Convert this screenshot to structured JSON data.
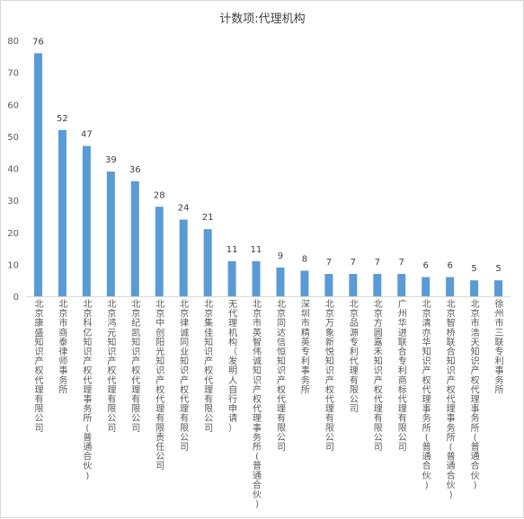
{
  "chart_data": {
    "type": "bar",
    "title": "计数项:代理机构",
    "xlabel": "",
    "ylabel": "",
    "ylim": [
      0,
      80
    ],
    "yticks": [
      0,
      10,
      20,
      30,
      40,
      50,
      60,
      70,
      80
    ],
    "grid": false,
    "legend": "none",
    "bar_color": "#5b9bd5",
    "categories": [
      "北京康盛知识产权代理有限公司",
      "北京市商泰律师事务所",
      "北京科亿知识产权代理事务所(普通合伙)",
      "北京鸿元知识产权代理有限公司",
      "北京纪凯知识产权代理有限公司",
      "北京中创阳光知识产权代理有限责任公司",
      "北京律诚同业知识产权代理有限公司",
      "北京集佳知识产权代理有限公司",
      "无代理机构（发明人自行申请）",
      "北京市英智伟诚知识产权代理事务所(普通合伙)",
      "北京同达信恒知识产权代理有限公司",
      "深圳市精英专利事务所",
      "北京万象新悦知识产权代理有限公司",
      "北京品源专利代理有限公司",
      "北京方圆嘉禾知识产权代理有限公司",
      "广州华进联合专利商标代理有限公司",
      "北京清亦华知识产权代理事务所(普通合伙)",
      "北京智桥联合知识产权代理事务所(普通合伙)",
      "北京市浩天知识产权代理事务所(普通合伙)",
      "徐州市三联专利事务所"
    ],
    "values": [
      76,
      52,
      47,
      39,
      36,
      28,
      24,
      21,
      11,
      11,
      9,
      8,
      7,
      7,
      7,
      7,
      6,
      6,
      5,
      5
    ]
  }
}
